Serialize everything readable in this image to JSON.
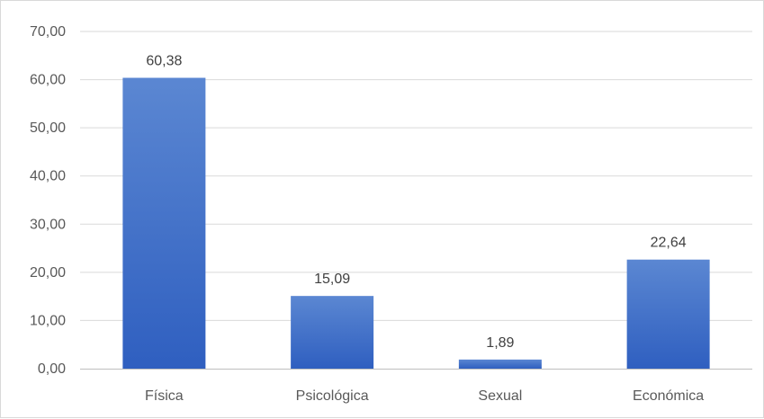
{
  "chart_data": {
    "type": "bar",
    "title": "",
    "xlabel": "",
    "ylabel": "",
    "categories": [
      "Física",
      "Psicológica",
      "Sexual",
      "Económica"
    ],
    "values": [
      60.38,
      15.09,
      1.89,
      22.64
    ],
    "value_labels": [
      "60,38",
      "15,09",
      "1,89",
      "22,64"
    ],
    "ylim": [
      0,
      70
    ],
    "yticks": [
      0,
      10,
      20,
      30,
      40,
      50,
      60,
      70
    ],
    "ytick_labels": [
      "0,00",
      "10,00",
      "20,00",
      "30,00",
      "40,00",
      "50,00",
      "60,00",
      "70,00"
    ],
    "grid": true,
    "legend": "none",
    "colors": {
      "bar_top": "#5B87D2",
      "bar_bottom": "#2F5FC0"
    }
  }
}
